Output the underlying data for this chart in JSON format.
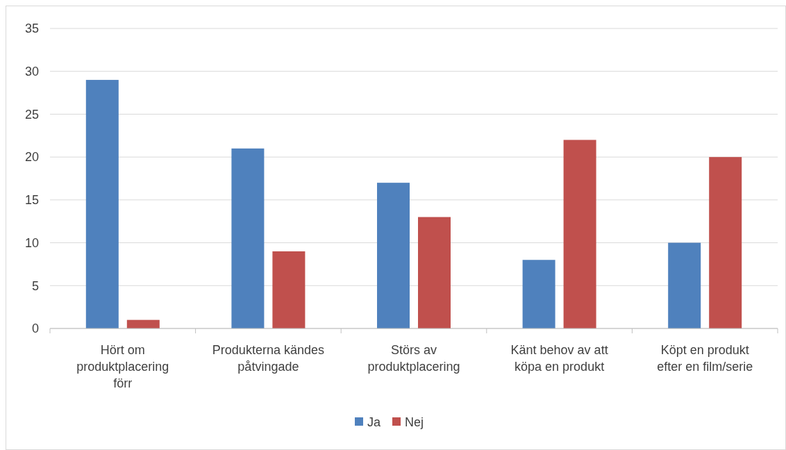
{
  "chart_data": {
    "type": "bar",
    "categories": [
      "Hört om produktplacering förr",
      "Produkterna kändes påtvingade",
      "Störs av produktplacering",
      "Känt behov av att köpa en produkt",
      "Köpt en produkt efter en film/serie"
    ],
    "series": [
      {
        "name": "Ja",
        "color": "#4f81bd",
        "values": [
          29,
          21,
          17,
          8,
          10
        ]
      },
      {
        "name": "Nej",
        "color": "#c0504d",
        "values": [
          1,
          9,
          13,
          22,
          20
        ]
      }
    ],
    "ylim": [
      0,
      35
    ],
    "yticks": [
      0,
      5,
      10,
      15,
      20,
      25,
      30,
      35
    ],
    "grid": "y",
    "legend": "bottom"
  }
}
